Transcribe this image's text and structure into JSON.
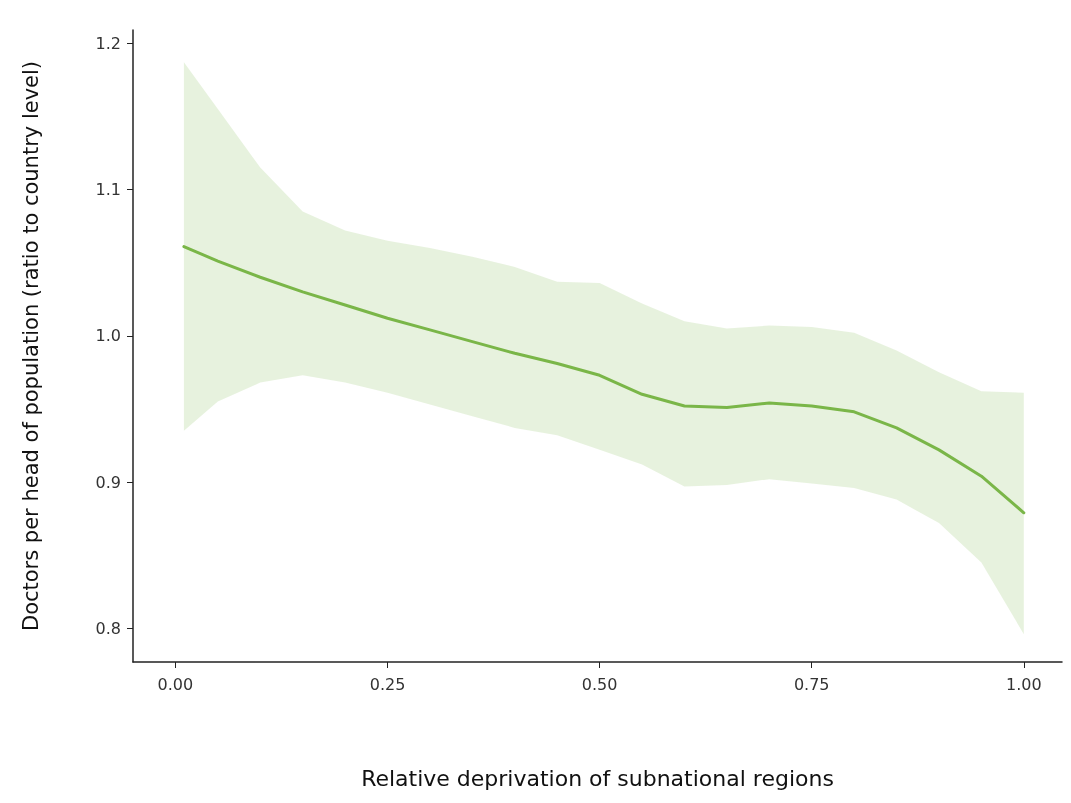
{
  "chart_data": {
    "type": "line",
    "xlabel": "Relative deprivation of subnational regions",
    "ylabel": "Doctors per head of population (ratio to country level)",
    "x": [
      0.01,
      0.05,
      0.1,
      0.15,
      0.2,
      0.25,
      0.3,
      0.35,
      0.4,
      0.45,
      0.5,
      0.55,
      0.6,
      0.65,
      0.7,
      0.75,
      0.8,
      0.85,
      0.9,
      0.95,
      1.0
    ],
    "series": [
      {
        "color": "#7ab648",
        "values": [
          1.061,
          1.051,
          1.04,
          1.03,
          1.021,
          1.012,
          1.004,
          0.996,
          0.988,
          0.981,
          0.973,
          0.96,
          0.952,
          0.951,
          0.954,
          0.952,
          0.948,
          0.937,
          0.922,
          0.904,
          0.879
        ],
        "lower": [
          0.935,
          0.955,
          0.968,
          0.973,
          0.968,
          0.961,
          0.953,
          0.945,
          0.937,
          0.932,
          0.922,
          0.912,
          0.897,
          0.898,
          0.902,
          0.899,
          0.896,
          0.888,
          0.872,
          0.845,
          0.796
        ],
        "upper": [
          1.187,
          1.155,
          1.115,
          1.085,
          1.072,
          1.065,
          1.06,
          1.054,
          1.047,
          1.037,
          1.036,
          1.022,
          1.01,
          1.005,
          1.007,
          1.006,
          1.002,
          0.99,
          0.975,
          0.962,
          0.961
        ]
      }
    ],
    "xlim": [
      -0.05,
      1.045
    ],
    "ylim": [
      0.777,
      1.209
    ],
    "xticks": [
      {
        "value": 0,
        "label": "0.00"
      },
      {
        "value": 0.25,
        "label": "0.25"
      },
      {
        "value": 0.5,
        "label": "0.50"
      },
      {
        "value": 0.75,
        "label": "0.75"
      },
      {
        "value": 1,
        "label": "1.00"
      }
    ],
    "yticks": [
      {
        "value": 0.8,
        "label": "0.8"
      },
      {
        "value": 0.9,
        "label": "0.9"
      },
      {
        "value": 1,
        "label": "1.0"
      },
      {
        "value": 1.1,
        "label": "1.1"
      },
      {
        "value": 1.2,
        "label": "1.2"
      }
    ],
    "grid": false,
    "marker": "none",
    "line_style": "solid"
  }
}
